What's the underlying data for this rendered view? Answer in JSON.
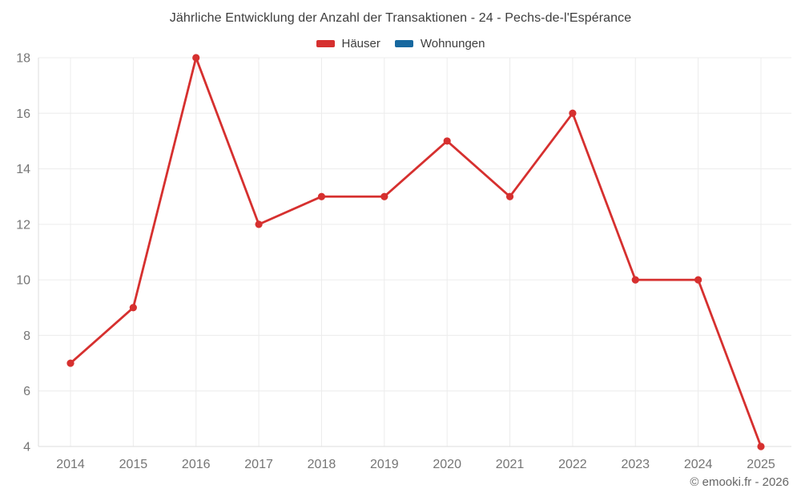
{
  "header": {
    "title": "Jährliche Entwicklung der Anzahl der Transaktionen - 24 - Pechs-de-l'Espérance"
  },
  "footer": {
    "credit": "© emooki.fr - 2026"
  },
  "colors": {
    "hauser": "#d6302f",
    "wohnungen": "#17689f",
    "grid": "#ececec",
    "axis_border": "#dedede",
    "tick_text": "#757575"
  },
  "chart_data": {
    "type": "line",
    "title": "Jährliche Entwicklung der Anzahl der Transaktionen - 24 - Pechs-de-l'Espérance",
    "categories": [
      "2014",
      "2015",
      "2016",
      "2017",
      "2018",
      "2019",
      "2020",
      "2021",
      "2022",
      "2023",
      "2024",
      "2025"
    ],
    "series": [
      {
        "name": "Häuser",
        "color": "#d6302f",
        "values": [
          7,
          9,
          18,
          12,
          13,
          13,
          15,
          13,
          16,
          10,
          10,
          4
        ]
      },
      {
        "name": "Wohnungen",
        "color": "#17689f",
        "values": []
      }
    ],
    "xlabel": "",
    "ylabel": "",
    "ylim": [
      4,
      18
    ],
    "yticks": [
      4,
      6,
      8,
      10,
      12,
      14,
      16,
      18
    ],
    "grid": true,
    "legend_position": "top",
    "marker": "circle"
  }
}
